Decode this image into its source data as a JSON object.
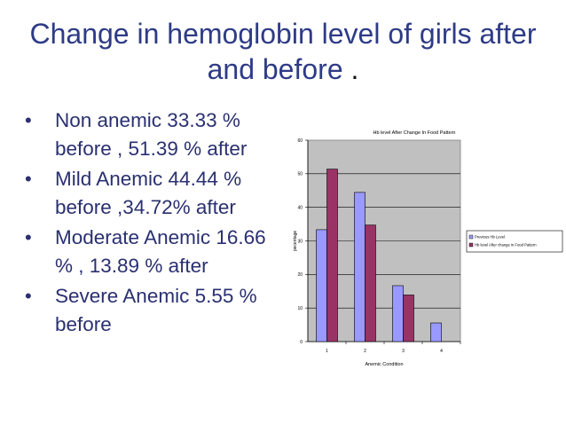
{
  "slide": {
    "title_main": "Change in hemoglobin level of girls after and before",
    "title_end": "."
  },
  "bullets": [
    {
      "text": "Non anemic 33.33 % before , 51.39 % after"
    },
    {
      "text": "Mild Anemic 44.44 % before ,34.72% after"
    },
    {
      "text": "Moderate Anemic 16.66 % , 13.89 % after"
    },
    {
      "text": "Severe Anemic 5.55 % before"
    }
  ],
  "chart_data": {
    "type": "bar",
    "title": "Hb level After Change In Food Pattern",
    "xlabel": "Anemic Condition",
    "ylabel": "pecentage",
    "categories": [
      "1",
      "2",
      "3",
      "4"
    ],
    "yticks": [
      "0",
      "10",
      "20",
      "30",
      "40",
      "50",
      "60"
    ],
    "ylim": [
      0,
      60
    ],
    "grid": true,
    "legend_position": "right",
    "series": [
      {
        "name": "Previous Hb Level",
        "color": "#9999ff",
        "values": [
          33.33,
          44.44,
          16.66,
          5.55
        ]
      },
      {
        "name": "Hb level After change in Food Pattern",
        "color": "#993366",
        "values": [
          51.39,
          34.72,
          13.89,
          0
        ]
      }
    ],
    "plot_background": "#c0c0c0"
  }
}
